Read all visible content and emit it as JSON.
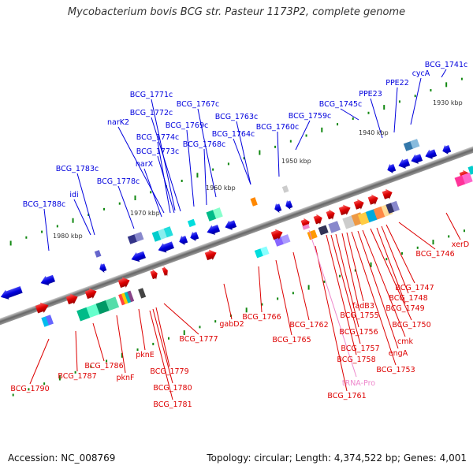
{
  "title": "Mycobacterium bovis BCG str. Pasteur 1173P2, complete genome",
  "accession_label": "Accession: NC_008769",
  "summary_label": "Topology: circular; Length: 4,374,522 bp; Genes: 4,001",
  "colors": {
    "forward_gene": "#0000dd",
    "reverse_gene": "#dd0000",
    "trna": "#ee88cc",
    "backbone": "#888888",
    "ticks": "#118811"
  },
  "scale_labels": [
    "1930 kbp",
    "1940 kbp",
    "1950 kbp",
    "1960 kbp",
    "1970 kbp",
    "1980 kbp"
  ],
  "forward_gene_labels": [
    "BCG_1741c",
    "cycA",
    "PPE22",
    "PPE23",
    "BCG_1745c",
    "BCG_1759c",
    "BCG_1760c",
    "BCG_1763c",
    "BCG_1764c",
    "BCG_1767c",
    "BCG_1768c",
    "BCG_1769c",
    "BCG_1771c",
    "BCG_1772c",
    "narK2",
    "BCG_1774c",
    "BCG_1773c",
    "narX",
    "BCG_1778c",
    "BCG_1783c",
    "idi",
    "BCG_1788c"
  ],
  "reverse_gene_labels": [
    "xerD",
    "BCG_1746",
    "BCG_1747",
    "BCG_1748",
    "BCG_1749",
    "BCG_1750",
    "cmk",
    "engA",
    "BCG_1753",
    "fadB3",
    "BCG_1755",
    "BCG_1756",
    "BCG_1757",
    "BCG_1758",
    "BCG_1761",
    "BCG_1762",
    "BCG_1765",
    "BCG_1766",
    "gabD2",
    "BCG_1777",
    "BCG_1779",
    "BCG_1780",
    "BCG_1781",
    "pknE",
    "pknF",
    "BCG_1786",
    "BCG_1787",
    "BCG_1790"
  ],
  "trna_label": "tRNA-Pro"
}
